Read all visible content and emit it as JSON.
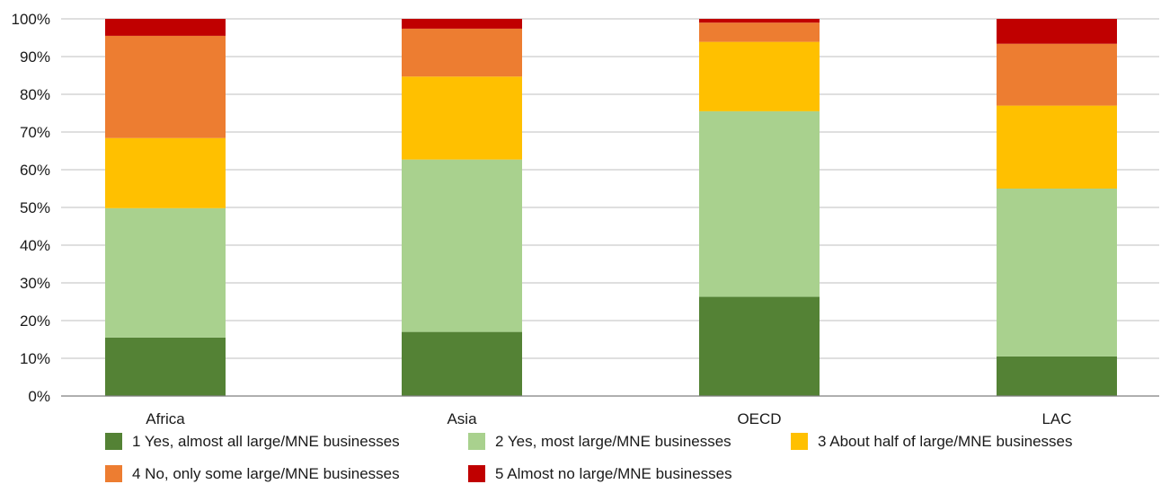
{
  "chart_data": {
    "type": "bar",
    "stacked": true,
    "categories": [
      "Africa",
      "Asia",
      "OECD",
      "LAC"
    ],
    "ylim": [
      0,
      100
    ],
    "yticks": [
      "0%",
      "10%",
      "20%",
      "30%",
      "40%",
      "50%",
      "60%",
      "70%",
      "80%",
      "90%",
      "100%"
    ],
    "grid": true,
    "legend_position": "bottom",
    "series": [
      {
        "name": "1 Yes, almost all large/MNE businesses",
        "color": "#548235",
        "values": [
          15.5,
          17,
          26.3,
          10.5
        ]
      },
      {
        "name": "2 Yes, most large/MNE businesses",
        "color": "#a9d18e",
        "values": [
          34.3,
          45.7,
          49.2,
          44.5
        ]
      },
      {
        "name": "3 About half of large/MNE businesses",
        "color": "#ffc000",
        "values": [
          18.6,
          22,
          18.4,
          22
        ]
      },
      {
        "name": "4 No, only some large/MNE businesses",
        "color": "#ed7d31",
        "values": [
          27.1,
          12.7,
          5.1,
          16.4
        ]
      },
      {
        "name": "5 Almost no large/MNE businesses",
        "color": "#c00000",
        "values": [
          4.5,
          2.6,
          1,
          6.6
        ]
      }
    ]
  }
}
